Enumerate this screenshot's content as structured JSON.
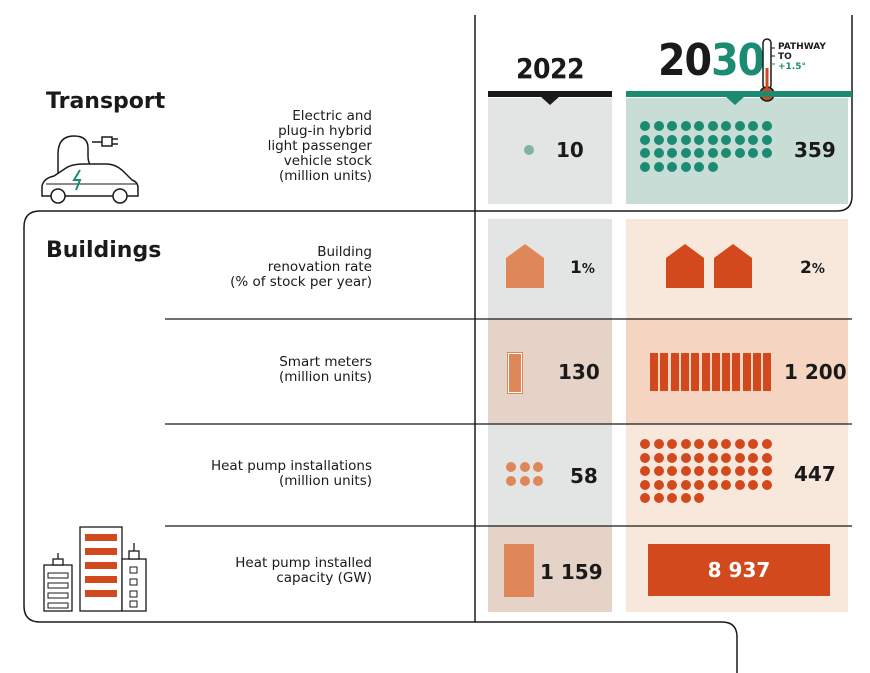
{
  "header": {
    "year_a": "2022",
    "year_b_prefix": "20",
    "year_b_suffix": "30",
    "pathway_line1": "PATHWAY",
    "pathway_line2": "TO",
    "pathway_line3": "+1.5°"
  },
  "colors": {
    "teal": "#1b8c72",
    "teal_light": "#c8ddd6",
    "gray_col": "#e3e4e4",
    "orange": "#d2491d",
    "orange_light": "#e0875a",
    "peach_light": "#f8e8dc",
    "peach_mid": "#f5d5c2",
    "tan_col": "#e6d3c8"
  },
  "transport": {
    "title": "Transport",
    "icon": "electric-car-icon",
    "metric": "Electric and plug-in hybrid light passenger vehicle stock (million units)",
    "metric_lines": [
      "Electric and",
      "plug-in hybrid",
      "light passenger",
      "vehicle stock",
      "(million units)"
    ],
    "value_2022": "10",
    "value_2030": "359",
    "dots_2022": 1,
    "dots_2030": 36
  },
  "buildings": {
    "title": "Buildings",
    "icon": "buildings-icon",
    "rows": [
      {
        "metric_lines": [
          "Building",
          "renovation rate",
          "(% of stock per year)"
        ],
        "value_2022": "1",
        "value_2030": "2",
        "unit": "%",
        "houses_2022": 1,
        "houses_2030": 2
      },
      {
        "metric_lines": [
          "Smart meters",
          "(million units)"
        ],
        "value_2022": "130",
        "value_2030": "1 200",
        "bars_2022": 1,
        "bars_2030": 12
      },
      {
        "metric_lines": [
          "Heat pump installations",
          "(million units)"
        ],
        "value_2022": "58",
        "value_2030": "447",
        "dots_2022": 6,
        "dots_2030": 45
      },
      {
        "metric_lines": [
          "Heat pump installed",
          "capacity (GW)"
        ],
        "value_2022": "1 159",
        "value_2030": "8 937"
      }
    ]
  }
}
